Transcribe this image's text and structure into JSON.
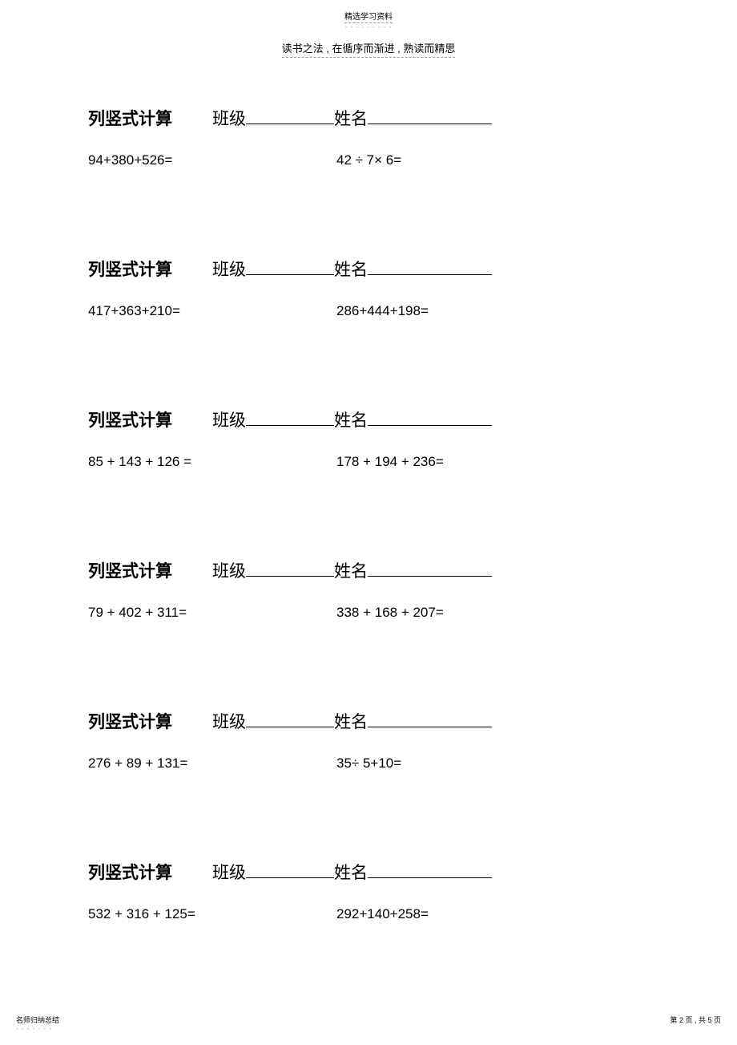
{
  "top_header": "精选学习资料",
  "sub_header": "读书之法 , 在循序而渐进 , 熟读而精思",
  "section_header": {
    "title": "列竖式计算",
    "class_label": "班级",
    "name_label": "姓名"
  },
  "sections": [
    {
      "left": "94+380+526=",
      "right": "42 ÷ 7× 6="
    },
    {
      "left": "417+363+210=",
      "right": "286+444+198="
    },
    {
      "left": "85 + 143 + 126 =",
      "right": "178 + 194 + 236="
    },
    {
      "left": "79 + 402 + 311=",
      "right": "338 + 168 + 207="
    },
    {
      "left": "276 + 89 + 131=",
      "right": "35÷ 5+10="
    },
    {
      "left": "532 + 316 + 125=",
      "right": "292+140+258="
    }
  ],
  "footer": {
    "left": "名师归纳总结",
    "right_prefix": "第 ",
    "page_current": "2",
    "right_mid": " 页 , 共 ",
    "page_total": "5",
    "right_suffix": " 页"
  }
}
